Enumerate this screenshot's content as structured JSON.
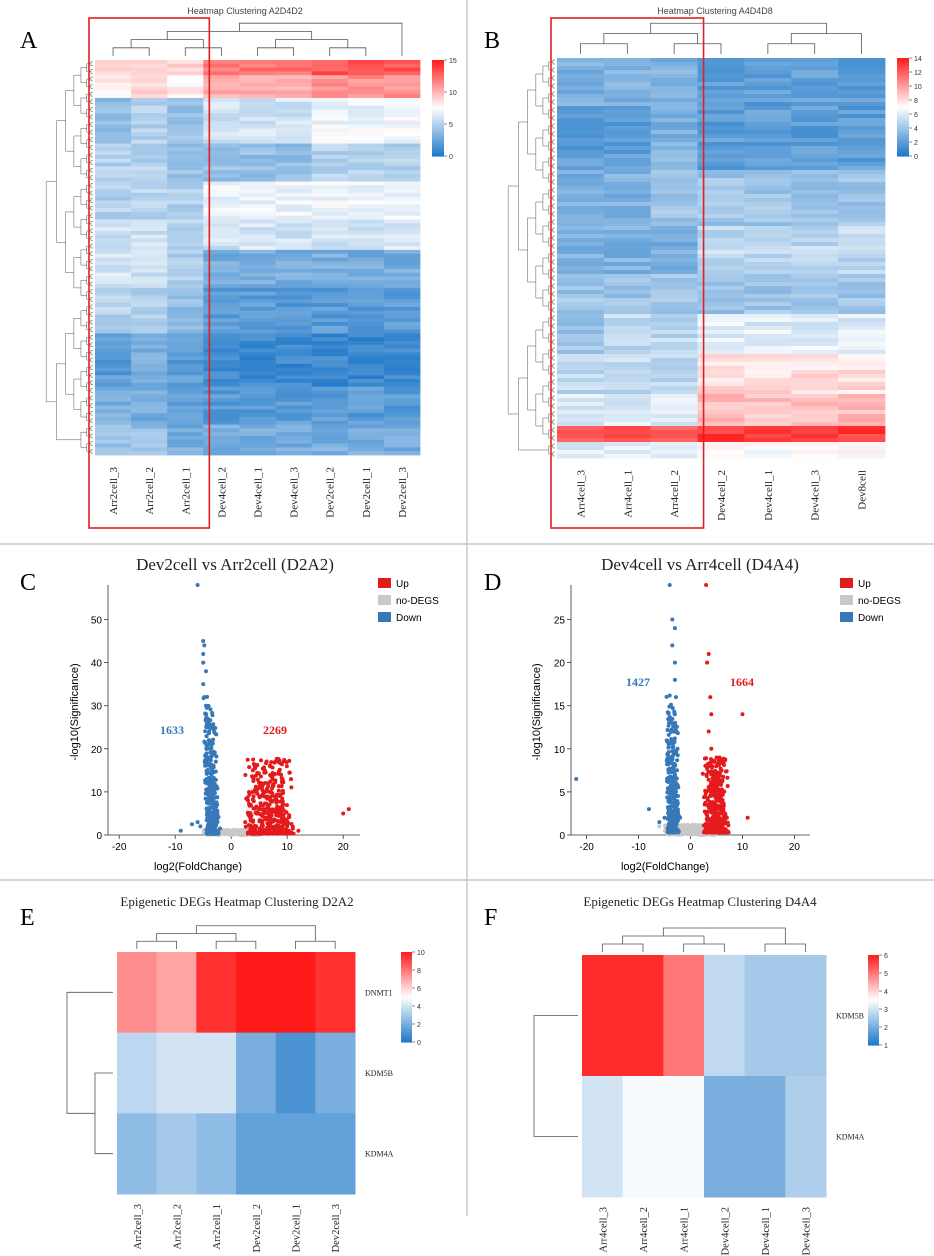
{
  "figure": {
    "panel_labels": [
      "A",
      "B",
      "C",
      "D",
      "E",
      "F"
    ]
  },
  "chart_data": [
    {
      "panel": "A",
      "type": "heatmap",
      "title": "Heatmap Clustering A2D4D2",
      "columns": [
        "Arr2cell_3",
        "Arr2cell_2",
        "Arr2cell_1",
        "Dev4cell_2",
        "Dev4cell_1",
        "Dev4cell_3",
        "Dev2cell_2",
        "Dev2cell_1",
        "Dev2cell_3"
      ],
      "highlighted_columns": [
        "Arr2cell_3",
        "Arr2cell_2",
        "Arr2cell_1"
      ],
      "colorbar": {
        "min": 0,
        "max": 15,
        "ticks": [
          0,
          5,
          10,
          15
        ]
      },
      "row_blocks": [
        {
          "rows": 4,
          "values": [
            9,
            9,
            9,
            12,
            12,
            12,
            13,
            13,
            13
          ]
        },
        {
          "rows": 6,
          "values": [
            8,
            9,
            8,
            10,
            10,
            10,
            11,
            11,
            11
          ]
        },
        {
          "rows": 12,
          "values": [
            4,
            5,
            4,
            6,
            6,
            6,
            7,
            7,
            7
          ]
        },
        {
          "rows": 10,
          "values": [
            5,
            5,
            4,
            4,
            4,
            4,
            5,
            5,
            5
          ]
        },
        {
          "rows": 10,
          "values": [
            5,
            5,
            5,
            7,
            7,
            7,
            7,
            7,
            7
          ]
        },
        {
          "rows": 8,
          "values": [
            6,
            6,
            5,
            6,
            6,
            6,
            6,
            6,
            6
          ]
        },
        {
          "rows": 10,
          "values": [
            6,
            6,
            5,
            3,
            3,
            3,
            3,
            3,
            3
          ]
        },
        {
          "rows": 12,
          "values": [
            5,
            5,
            4,
            2,
            2,
            2,
            2,
            2,
            2
          ]
        },
        {
          "rows": 14,
          "values": [
            2,
            3,
            2,
            1,
            1,
            1,
            1,
            1,
            1
          ]
        },
        {
          "rows": 10,
          "values": [
            3,
            3,
            2,
            2,
            2,
            2,
            2,
            2,
            2
          ]
        },
        {
          "rows": 8,
          "values": [
            4,
            4,
            3,
            3,
            3,
            3,
            3,
            3,
            3
          ]
        }
      ]
    },
    {
      "panel": "B",
      "type": "heatmap",
      "title": "Heatmap Clustering A4D4D8",
      "columns": [
        "Arr4cell_3",
        "Arr4cell_1",
        "Arr4cell_2",
        "Dev4cell_2",
        "Dev4cell_1",
        "Dev4cell_3",
        "Dev8cell"
      ],
      "highlighted_columns": [
        "Arr4cell_3",
        "Arr4cell_1",
        "Arr4cell_2"
      ],
      "colorbar": {
        "min": 0,
        "max": 14,
        "ticks": [
          0,
          2,
          4,
          6,
          8,
          10,
          12,
          14
        ]
      },
      "row_blocks": [
        {
          "rows": 12,
          "values": [
            3,
            3,
            3,
            2,
            2,
            2,
            2
          ]
        },
        {
          "rows": 16,
          "values": [
            2,
            2,
            3,
            2,
            2,
            2,
            2
          ]
        },
        {
          "rows": 14,
          "values": [
            3,
            3,
            4,
            4,
            4,
            4,
            4
          ]
        },
        {
          "rows": 12,
          "values": [
            3,
            3,
            3,
            5,
            5,
            5,
            5
          ]
        },
        {
          "rows": 10,
          "values": [
            4,
            4,
            4,
            4,
            4,
            4,
            4
          ]
        },
        {
          "rows": 10,
          "values": [
            4,
            5,
            5,
            6,
            6,
            6,
            6
          ]
        },
        {
          "rows": 10,
          "values": [
            5,
            5,
            5,
            8,
            8,
            8,
            8
          ]
        },
        {
          "rows": 8,
          "values": [
            6,
            6,
            6,
            9,
            9,
            9,
            9
          ]
        },
        {
          "rows": 4,
          "values": [
            12,
            12,
            12,
            13,
            13,
            13,
            13
          ]
        },
        {
          "rows": 4,
          "values": [
            6,
            6,
            6,
            7,
            7,
            7,
            7
          ]
        }
      ]
    },
    {
      "panel": "C",
      "type": "scatter",
      "title": "Dev2cell vs Arr2cell (D2A2)",
      "xlabel": "log2(FoldChange)",
      "ylabel": "-log10(Significance)",
      "xlim": [
        -22,
        23
      ],
      "ylim": [
        0,
        58
      ],
      "xticks": [
        -20,
        -10,
        0,
        10,
        20
      ],
      "yticks": [
        0,
        10,
        20,
        30,
        40,
        50
      ],
      "legend": [
        {
          "label": "Up",
          "color": "#e41a1c"
        },
        {
          "label": "no-DEGS",
          "color": "#c8c8c8"
        },
        {
          "label": "Down",
          "color": "#3778b8"
        }
      ],
      "annotations": [
        {
          "text": "1633",
          "color": "#3778b8"
        },
        {
          "text": "2269",
          "color": "#e41a1c"
        }
      ],
      "down_points": [
        [
          -6,
          58
        ],
        [
          -5,
          45
        ],
        [
          -4.8,
          44
        ],
        [
          -5,
          42
        ],
        [
          -5,
          40
        ],
        [
          -4.5,
          38
        ],
        [
          -5,
          35
        ],
        [
          -4.8,
          32
        ],
        [
          -4.5,
          30
        ],
        [
          -4.5,
          27
        ],
        [
          -4.2,
          25
        ],
        [
          -4,
          22
        ],
        [
          -4.2,
          20
        ],
        [
          -4,
          18
        ],
        [
          -3.8,
          16
        ],
        [
          -3.5,
          14
        ],
        [
          -4,
          12
        ],
        [
          -3.2,
          10
        ],
        [
          -3.5,
          8
        ],
        [
          -3,
          6
        ],
        [
          -3.2,
          4
        ],
        [
          -2.5,
          3
        ],
        [
          -2,
          1.5
        ],
        [
          -6,
          3
        ],
        [
          -7,
          2.5
        ],
        [
          -9,
          1
        ],
        [
          -5.5,
          2
        ]
      ],
      "up_points": [
        [
          2.5,
          3
        ],
        [
          3,
          5
        ],
        [
          3.5,
          7
        ],
        [
          4,
          9
        ],
        [
          5,
          11
        ],
        [
          4,
          13
        ],
        [
          6,
          15
        ],
        [
          3,
          8
        ],
        [
          5,
          6
        ],
        [
          6,
          4
        ],
        [
          7,
          3
        ],
        [
          8,
          2
        ],
        [
          9,
          3
        ],
        [
          10,
          2
        ],
        [
          11,
          1.5
        ],
        [
          7,
          8
        ],
        [
          8,
          6
        ],
        [
          4.5,
          5
        ],
        [
          12,
          1
        ],
        [
          20,
          5
        ],
        [
          21,
          6
        ]
      ],
      "nodeg_points": [
        [
          -2,
          0.5
        ],
        [
          -1,
          0.3
        ],
        [
          0,
          0.2
        ],
        [
          1,
          0.4
        ],
        [
          2,
          0.6
        ],
        [
          -3,
          0.8
        ],
        [
          3,
          0.7
        ],
        [
          4,
          1
        ],
        [
          -1.5,
          1.2
        ],
        [
          1.5,
          1
        ]
      ]
    },
    {
      "panel": "D",
      "type": "scatter",
      "title": "Dev4cell vs Arr4cell (D4A4)",
      "xlabel": "log2(FoldChange)",
      "ylabel": "-log10(Significance)",
      "xlim": [
        -23,
        23
      ],
      "ylim": [
        0,
        29
      ],
      "xticks": [
        -20,
        -10,
        0,
        10,
        20
      ],
      "yticks": [
        0,
        5,
        10,
        15,
        20,
        25
      ],
      "legend": [
        {
          "label": "Up",
          "color": "#e41a1c"
        },
        {
          "label": "no-DEGS",
          "color": "#c8c8c8"
        },
        {
          "label": "Down",
          "color": "#3778b8"
        }
      ],
      "annotations": [
        {
          "text": "1427",
          "color": "#3778b8"
        },
        {
          "text": "1664",
          "color": "#e41a1c"
        }
      ],
      "down_points": [
        [
          -4,
          29
        ],
        [
          -3.5,
          25
        ],
        [
          -3,
          24
        ],
        [
          -3.5,
          22
        ],
        [
          -3,
          20
        ],
        [
          -3,
          18
        ],
        [
          -2.8,
          16
        ],
        [
          -3,
          14
        ],
        [
          -3.2,
          12
        ],
        [
          -2.5,
          10
        ],
        [
          -3.5,
          9
        ],
        [
          -3,
          7
        ],
        [
          -2.8,
          5
        ],
        [
          -3,
          4
        ],
        [
          -4,
          3
        ],
        [
          -5,
          2
        ],
        [
          -6,
          1.5
        ],
        [
          -8,
          3
        ],
        [
          -2,
          2
        ],
        [
          -22,
          6.5
        ]
      ],
      "up_points": [
        [
          3,
          29
        ],
        [
          3.5,
          21
        ],
        [
          3.2,
          20
        ],
        [
          3.8,
          16
        ],
        [
          4,
          14
        ],
        [
          3.5,
          12
        ],
        [
          4,
          10
        ],
        [
          3.5,
          8
        ],
        [
          4.5,
          6
        ],
        [
          5,
          4
        ],
        [
          3,
          5
        ],
        [
          6,
          3
        ],
        [
          7,
          2
        ],
        [
          10,
          14
        ],
        [
          11,
          2
        ],
        [
          4,
          3
        ],
        [
          5,
          7
        ]
      ],
      "nodeg_points": [
        [
          -2,
          0.4
        ],
        [
          -1,
          0.3
        ],
        [
          0,
          0.2
        ],
        [
          1,
          0.4
        ],
        [
          2,
          0.5
        ],
        [
          -4,
          0.6
        ],
        [
          5,
          0.6
        ],
        [
          -6,
          1
        ],
        [
          6,
          0.8
        ]
      ]
    },
    {
      "panel": "E",
      "type": "heatmap",
      "title": "Epigenetic DEGs Heatmap Clustering D2A2",
      "columns": [
        "Arr2cell_3",
        "Arr2cell_2",
        "Arr2cell_1",
        "Dev2cell_2",
        "Dev2cell_1",
        "Dev2cell_3"
      ],
      "rows": [
        "DNMT1",
        "KDM5B",
        "KDM4A"
      ],
      "values": [
        [
          7.5,
          7,
          9.5,
          10,
          10.5,
          9.5
        ],
        [
          3.5,
          4,
          4,
          2,
          1,
          2
        ],
        [
          2.5,
          3,
          2.5,
          1.5,
          1.5,
          1.5
        ]
      ],
      "colorbar": {
        "min": 0,
        "max": 10,
        "ticks": [
          0,
          2,
          4,
          6,
          8,
          10
        ]
      }
    },
    {
      "panel": "F",
      "type": "heatmap",
      "title": "Epigenetic DEGs Heatmap Clustering D4A4",
      "columns": [
        "Arr4cell_3",
        "Arr4cell_2",
        "Arr4cell_1",
        "Dev4cell_2",
        "Dev4cell_1",
        "Dev4cell_3"
      ],
      "rows": [
        "KDM5B",
        "KDM4A"
      ],
      "values": [
        [
          5.8,
          5.8,
          5,
          2.8,
          2.5,
          2.5
        ],
        [
          3,
          3.4,
          3.4,
          2,
          2,
          2.6
        ]
      ],
      "colorbar": {
        "min": 1,
        "max": 6,
        "ticks": [
          1,
          2,
          3,
          4,
          5,
          6
        ]
      }
    }
  ]
}
